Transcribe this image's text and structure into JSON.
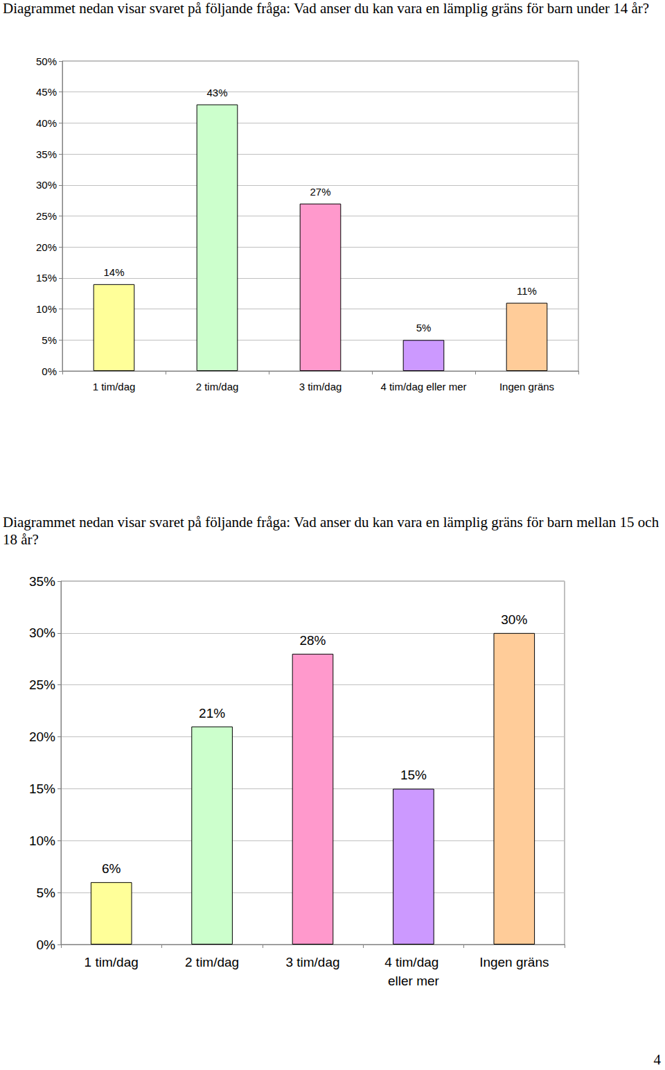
{
  "chart_data": [
    {
      "type": "bar",
      "title": "Diagrammet nedan visar svaret på följande fråga: Vad anser du kan vara en lämplig gräns för barn under 14 år?",
      "categories": [
        "1 tim/dag",
        "2 tim/dag",
        "3 tim/dag",
        "4 tim/dag eller mer",
        "Ingen gräns"
      ],
      "values": [
        14,
        43,
        27,
        5,
        11
      ],
      "value_labels": [
        "14%",
        "43%",
        "27%",
        "5%",
        "11%"
      ],
      "colors": [
        "#ffff99",
        "#ccffcc",
        "#ff99cc",
        "#cc99ff",
        "#ffcc99"
      ],
      "ylim": [
        0,
        50
      ],
      "yticks": [
        {
          "value": 0,
          "label": "0%"
        },
        {
          "value": 5,
          "label": "5%"
        },
        {
          "value": 10,
          "label": "10%"
        },
        {
          "value": 15,
          "label": "15%"
        },
        {
          "value": 20,
          "label": "20%"
        },
        {
          "value": 25,
          "label": "25%"
        },
        {
          "value": 30,
          "label": "30%"
        },
        {
          "value": 35,
          "label": "35%"
        },
        {
          "value": 40,
          "label": "40%"
        },
        {
          "value": 45,
          "label": "45%"
        },
        {
          "value": 50,
          "label": "50%"
        }
      ],
      "grid": true,
      "data_labels": true
    },
    {
      "type": "bar",
      "title": "Diagrammet nedan visar svaret på följande fråga: Vad anser du kan vara en lämplig gräns för barn mellan 15 och 18 år?",
      "categories": [
        "1 tim/dag",
        "2 tim/dag",
        "3 tim/dag",
        "4 tim/dag eller mer",
        "Ingen gräns"
      ],
      "values": [
        6,
        21,
        28,
        15,
        30
      ],
      "value_labels": [
        "6%",
        "21%",
        "28%",
        "15%",
        "30%"
      ],
      "colors": [
        "#ffff99",
        "#ccffcc",
        "#ff99cc",
        "#cc99ff",
        "#ffcc99"
      ],
      "ylim": [
        0,
        35
      ],
      "yticks": [
        {
          "value": 0,
          "label": "0%"
        },
        {
          "value": 5,
          "label": "5%"
        },
        {
          "value": 10,
          "label": "10%"
        },
        {
          "value": 15,
          "label": "15%"
        },
        {
          "value": 20,
          "label": "20%"
        },
        {
          "value": 25,
          "label": "25%"
        },
        {
          "value": 30,
          "label": "30%"
        },
        {
          "value": 35,
          "label": "35%"
        }
      ],
      "grid": true,
      "data_labels": true
    }
  ],
  "page_number": "4"
}
